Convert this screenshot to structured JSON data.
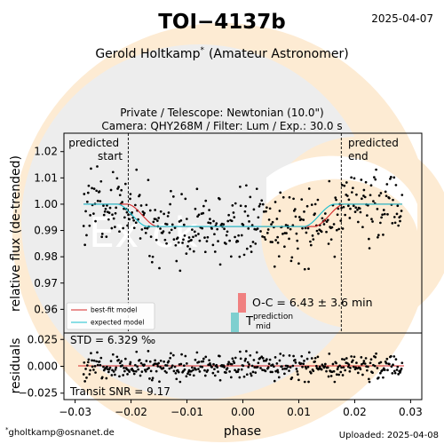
{
  "header": {
    "title": "TOI−4137b",
    "date": "2025-04-07",
    "observer": "Gerold Holtkamp",
    "observer_mark": "*",
    "observer_role": "(Amateur Astronomer)",
    "setup_line1": "Private / Telescope: Newtonian (10.0\")",
    "setup_line2": "Camera: QHY268M / Filter: Lum / Exp.: 30.0 s"
  },
  "footer": {
    "email_mark": "*",
    "email": "gholtkamp@osnanet.de",
    "uploaded": "Uploaded: 2025-04-08"
  },
  "watermark": {
    "text": "Ex  ck",
    "colors": {
      "ring": "#fdebd3",
      "disc": "#ededed",
      "mark": "#ffffff"
    }
  },
  "chart_data": [
    {
      "type": "scatter",
      "panel": "main",
      "xlim": [
        -0.032,
        0.032
      ],
      "ylim": [
        0.951,
        1.027
      ],
      "ylabel": "relative flux (de-trended)",
      "yticks": [
        0.96,
        0.97,
        0.98,
        0.99,
        1.0,
        1.01,
        1.02
      ],
      "ytick_labels": [
        "0.96",
        "0.97",
        "0.98",
        "0.99",
        "1.00",
        "1.01",
        "1.02"
      ],
      "predicted_start": -0.0205,
      "predicted_end": 0.0176,
      "predicted_start_label": [
        "predicted",
        "start"
      ],
      "predicted_end_label": [
        "predicted",
        "end"
      ],
      "transit_depth": 0.0085,
      "noise_std": 0.0064,
      "n_points": 420,
      "x_range": [
        -0.0285,
        0.0285
      ],
      "series": [
        {
          "name": "best-fit model",
          "color": "#d62728",
          "ingress": -0.0207,
          "egress": 0.0182,
          "duration_edge": 0.0055
        },
        {
          "name": "expected model",
          "color": "#17becf",
          "ingress": -0.0225,
          "egress": 0.0164,
          "duration_edge": 0.0055
        }
      ],
      "point_color": "#000000",
      "oc_label": "O-C = 6.43 ± 3.6 min",
      "oc_color": "#f08080",
      "tmid_label_main": "T",
      "tmid_label_sup": "prediction",
      "tmid_label_sub": "mid",
      "tmid_color": "#7ecfcf",
      "legend_position": "bottom-left"
    },
    {
      "type": "scatter",
      "panel": "residuals",
      "xlim": [
        -0.032,
        0.032
      ],
      "ylim": [
        -0.031,
        0.031
      ],
      "xlabel": "phase",
      "ylabel": "residuals",
      "xticks": [
        -0.03,
        -0.02,
        -0.01,
        0.0,
        0.01,
        0.02,
        0.03
      ],
      "xtick_labels": [
        "−0.03",
        "−0.02",
        "−0.01",
        "0.00",
        "0.01",
        "0.02",
        "0.03"
      ],
      "yticks": [
        0.025,
        0.0,
        -0.025
      ],
      "ytick_labels": [
        "0.025",
        "0.000",
        "−0.025"
      ],
      "std_label": "STD = 6.329 ‰",
      "snr_label": "Transit SNR = 9.17",
      "zero_line_color": "#d62728"
    }
  ]
}
